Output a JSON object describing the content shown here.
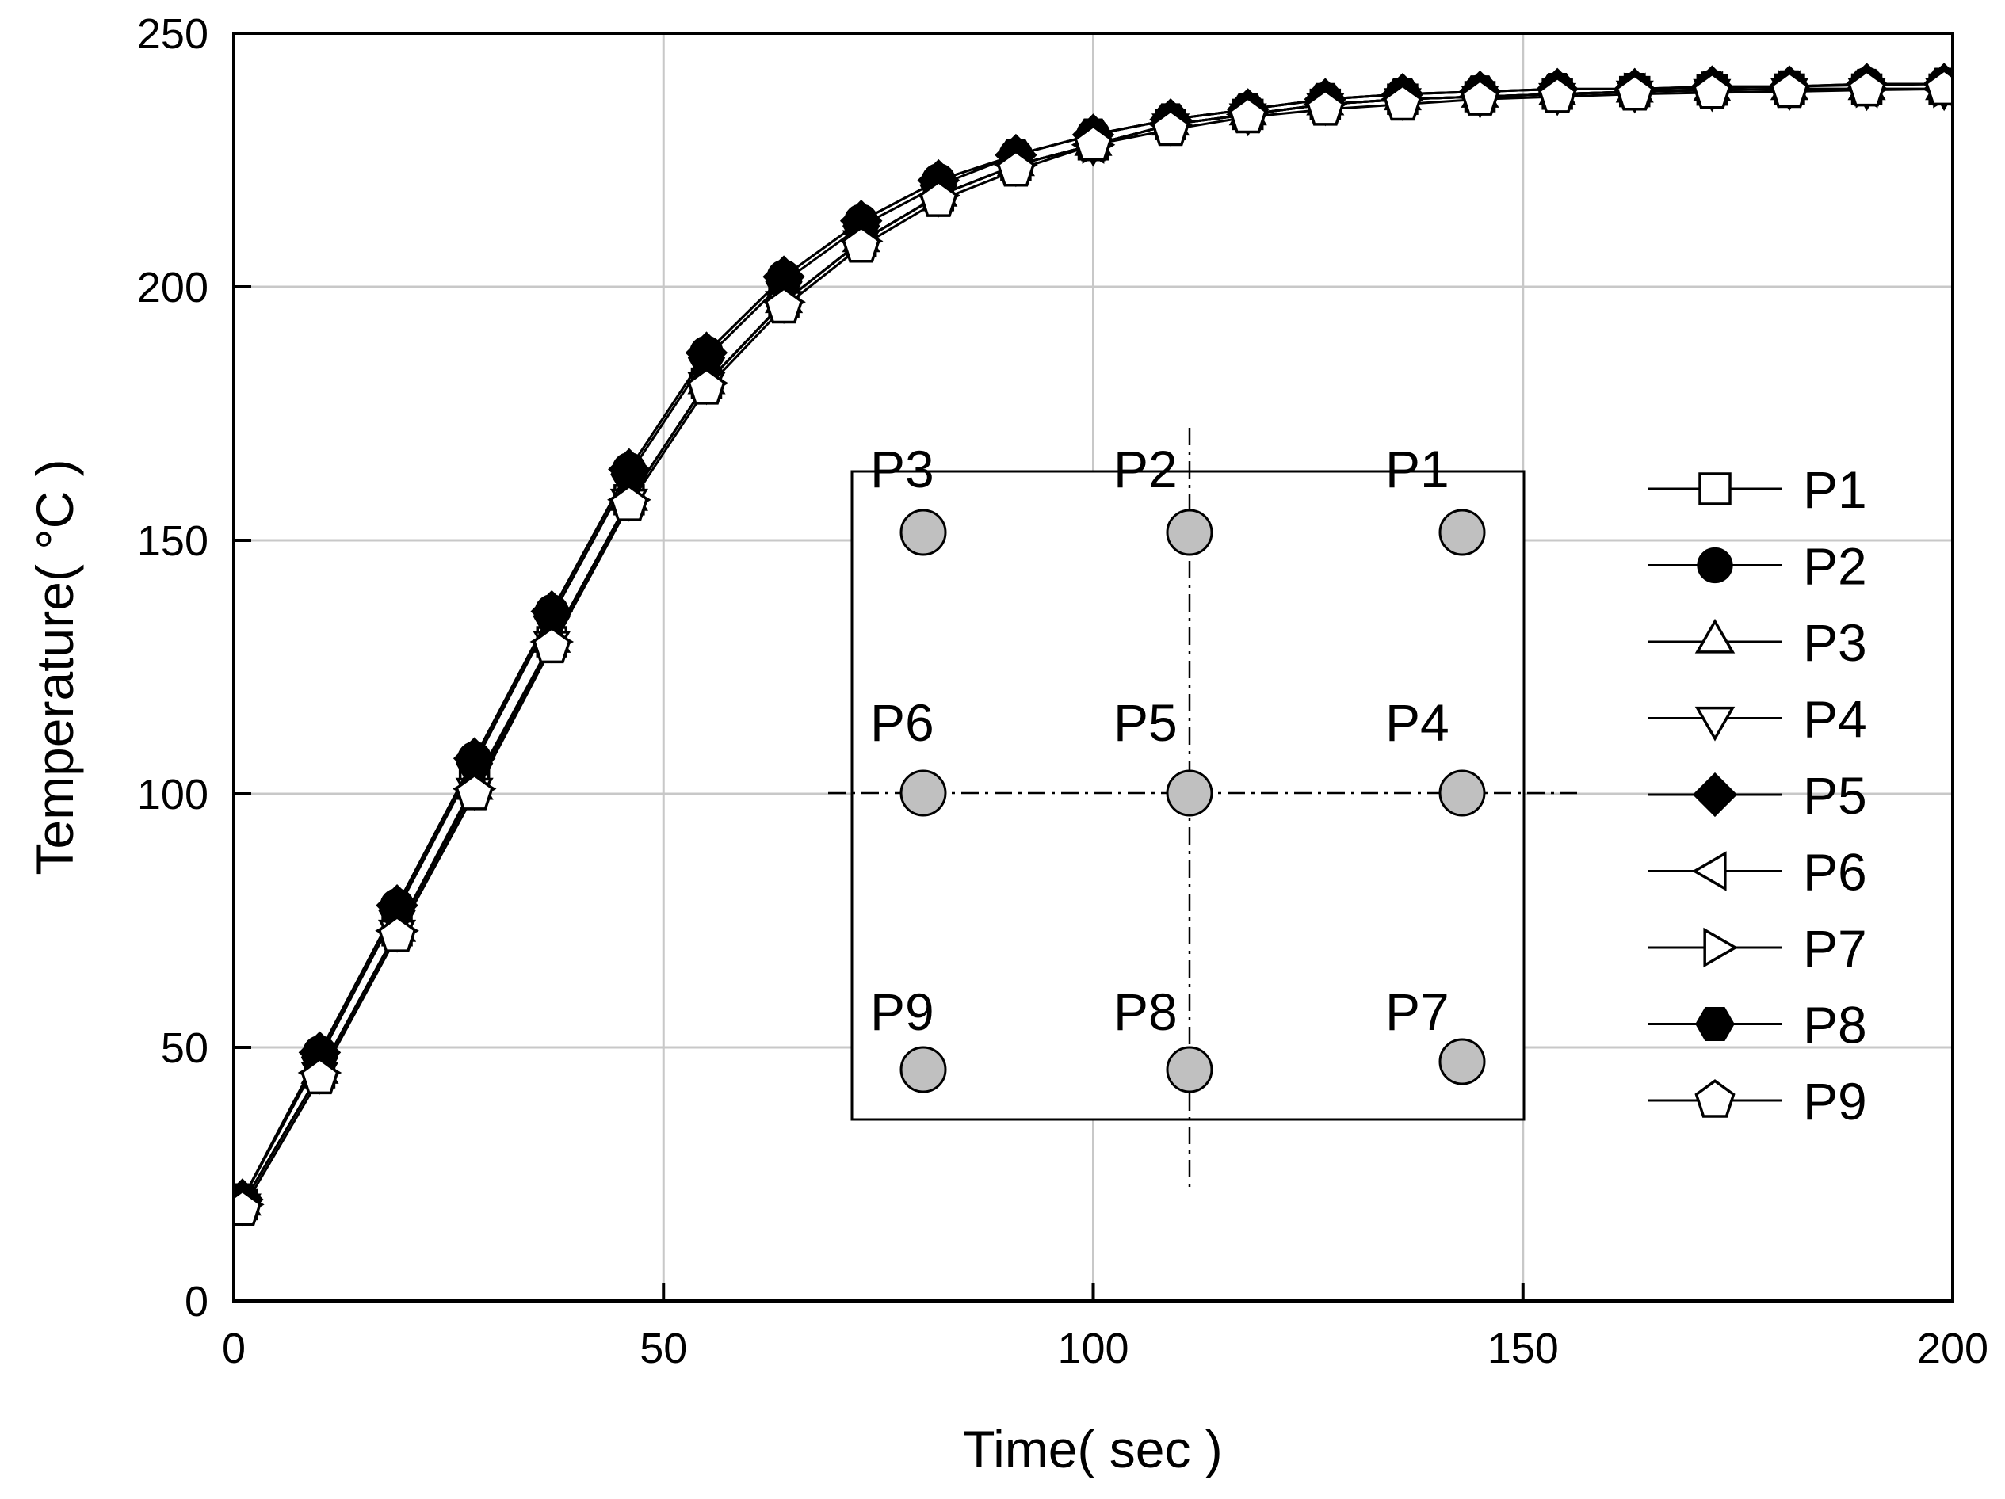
{
  "chart_data": {
    "type": "line",
    "title": "",
    "xlabel": "Time( sec )",
    "ylabel": "Temperature( °C )",
    "xlim": [
      0,
      200
    ],
    "ylim": [
      0,
      250
    ],
    "xticks": [
      0,
      50,
      100,
      150,
      200
    ],
    "yticks": [
      0,
      50,
      100,
      150,
      200,
      250
    ],
    "grid": true,
    "legend_position": "right",
    "x": [
      1,
      10,
      19,
      28,
      37,
      46,
      55,
      64,
      73,
      82,
      91,
      100,
      109,
      118,
      127,
      136,
      145,
      154,
      163,
      172,
      181,
      190,
      199
    ],
    "series": [
      {
        "name": "P1",
        "marker": "square-open",
        "values": [
          19,
          45,
          73,
          102,
          130,
          158,
          181,
          197,
          209,
          218,
          224,
          228,
          232,
          234,
          236,
          237,
          237.5,
          238,
          238.5,
          238.8,
          239,
          239,
          239
        ]
      },
      {
        "name": "P2",
        "marker": "circle-filled",
        "values": [
          20,
          49,
          78,
          107,
          136,
          164,
          187,
          202,
          213,
          221,
          226,
          230,
          233,
          235,
          237,
          238,
          238.5,
          239,
          239,
          239.5,
          239.5,
          240,
          240
        ]
      },
      {
        "name": "P3",
        "marker": "triangle-up-open",
        "values": [
          19,
          45,
          73,
          101,
          130,
          158,
          181,
          197,
          209,
          218,
          224,
          228,
          232,
          234,
          236,
          237,
          237.5,
          238,
          238.5,
          238.8,
          239,
          239,
          239
        ]
      },
      {
        "name": "P4",
        "marker": "triangle-down-open",
        "values": [
          19,
          45,
          73,
          101,
          130,
          158,
          181,
          197,
          209,
          218,
          224,
          228,
          232,
          234,
          236,
          237,
          237.5,
          238,
          238.5,
          238.8,
          239,
          239,
          239
        ]
      },
      {
        "name": "P5",
        "marker": "diamond-filled",
        "values": [
          20,
          49,
          78,
          107,
          136,
          164,
          187,
          202,
          213,
          221,
          226,
          230,
          233,
          235,
          237,
          238,
          238.5,
          239,
          239,
          239.5,
          239.5,
          240,
          240
        ]
      },
      {
        "name": "P6",
        "marker": "triangle-left-open",
        "values": [
          19,
          45,
          73,
          101,
          130,
          158,
          181,
          197,
          209,
          218,
          224,
          228,
          232,
          234,
          236,
          237,
          237.5,
          238,
          238.5,
          238.8,
          239,
          239,
          239
        ]
      },
      {
        "name": "P7",
        "marker": "triangle-right-open",
        "values": [
          19,
          45,
          73,
          101,
          130,
          158,
          181,
          197,
          209,
          218,
          224,
          228,
          232,
          234,
          236,
          237,
          237.5,
          238,
          238.5,
          238.8,
          239,
          239,
          239
        ]
      },
      {
        "name": "P8",
        "marker": "hexagon-filled",
        "values": [
          20,
          48,
          77,
          106,
          135,
          163,
          186,
          201,
          212,
          220,
          226,
          230,
          233,
          235,
          237,
          238,
          238.5,
          239,
          239,
          239.3,
          239.5,
          239.8,
          240
        ]
      },
      {
        "name": "P9",
        "marker": "pentagon-open",
        "values": [
          18,
          44,
          72,
          100,
          129,
          157,
          180,
          196,
          208,
          217,
          223,
          228,
          231,
          233.5,
          235,
          236,
          237,
          237.5,
          238,
          238.3,
          238.5,
          238.8,
          239
        ]
      }
    ],
    "inset_labels": [
      "P1",
      "P2",
      "P3",
      "P4",
      "P5",
      "P6",
      "P7",
      "P8",
      "P9"
    ]
  }
}
